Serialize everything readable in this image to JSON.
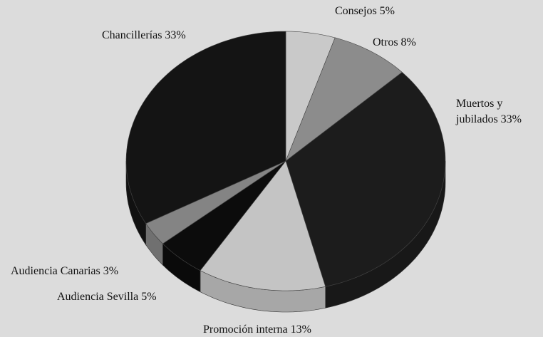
{
  "chart_data": {
    "type": "pie",
    "categories": [
      "Consejos",
      "Otros",
      "Muertos y jubilados",
      "Promoción interna",
      "Audiencia Sevilla",
      "Audiencia Canarias",
      "Chancillerías"
    ],
    "values": [
      5,
      8,
      33,
      13,
      5,
      3,
      33
    ],
    "labels": [
      [
        "Consejos 5%"
      ],
      [
        "Otros 8%"
      ],
      [
        "Muertos y",
        "jubilados 33%"
      ],
      [
        "Promoción interna 13%"
      ],
      [
        "Audiencia Sevilla 5%"
      ],
      [
        "Audiencia Canarias 3%"
      ],
      [
        "Chancillerías 33%"
      ]
    ],
    "colors": [
      "#c9c9c9",
      "#8c8c8c",
      "#1c1c1c",
      "#c4c4c4",
      "#0c0c0c",
      "#848484",
      "#141414"
    ]
  }
}
